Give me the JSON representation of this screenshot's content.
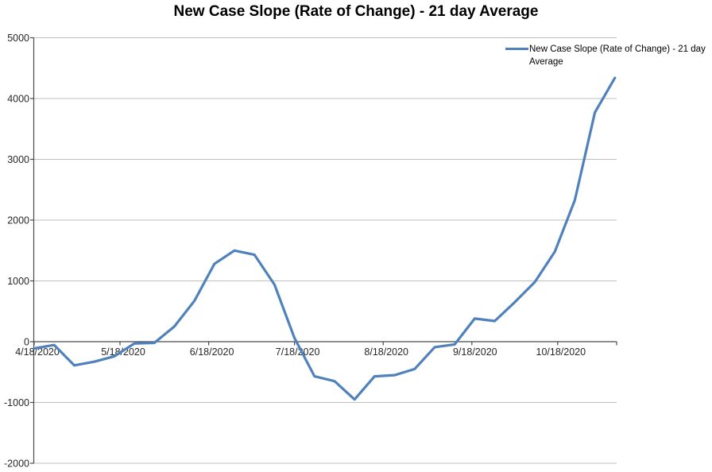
{
  "chart_data": {
    "type": "line",
    "title": "New Case Slope (Rate of Change) - 21 day Average",
    "xlabel": "",
    "ylabel": "",
    "x": [
      "4/18/2020",
      "4/25/2020",
      "5/2/2020",
      "5/9/2020",
      "5/16/2020",
      "5/23/2020",
      "5/30/2020",
      "6/6/2020",
      "6/13/2020",
      "6/20/2020",
      "6/27/2020",
      "7/4/2020",
      "7/11/2020",
      "7/18/2020",
      "7/25/2020",
      "8/1/2020",
      "8/8/2020",
      "8/15/2020",
      "8/22/2020",
      "8/29/2020",
      "9/5/2020",
      "9/12/2020",
      "9/19/2020",
      "9/26/2020",
      "10/3/2020",
      "10/10/2020",
      "10/17/2020",
      "10/24/2020",
      "10/31/2020",
      "11/7/2020"
    ],
    "series": [
      {
        "name": "New Case Slope (Rate of Change) - 21 day Average",
        "color": "#4F81BD",
        "values": [
          -110,
          -55,
          -390,
          -330,
          -240,
          -30,
          -20,
          250,
          670,
          1280,
          1500,
          1430,
          940,
          60,
          -570,
          -650,
          -950,
          -570,
          -550,
          -450,
          -90,
          -45,
          380,
          340,
          650,
          980,
          1480,
          2330,
          3770,
          4340
        ]
      }
    ],
    "x_tick_labels": [
      "4/18/2020",
      "5/18/2020",
      "6/18/2020",
      "7/18/2020",
      "8/18/2020",
      "9/18/2020",
      "10/18/2020"
    ],
    "y_ticks": [
      5000,
      4000,
      3000,
      2000,
      1000,
      0,
      -1000,
      -2000
    ],
    "ylim": [
      -2000,
      5000
    ],
    "grid": "horizontal",
    "legend_position": "top-right",
    "grid_color": "#bfbfbf",
    "axis_color": "#4a4a4a",
    "label_color": "#262626"
  },
  "legend": {
    "lines": [
      "New Case Slope (Rate of Change) - 21 day",
      "Average"
    ]
  }
}
